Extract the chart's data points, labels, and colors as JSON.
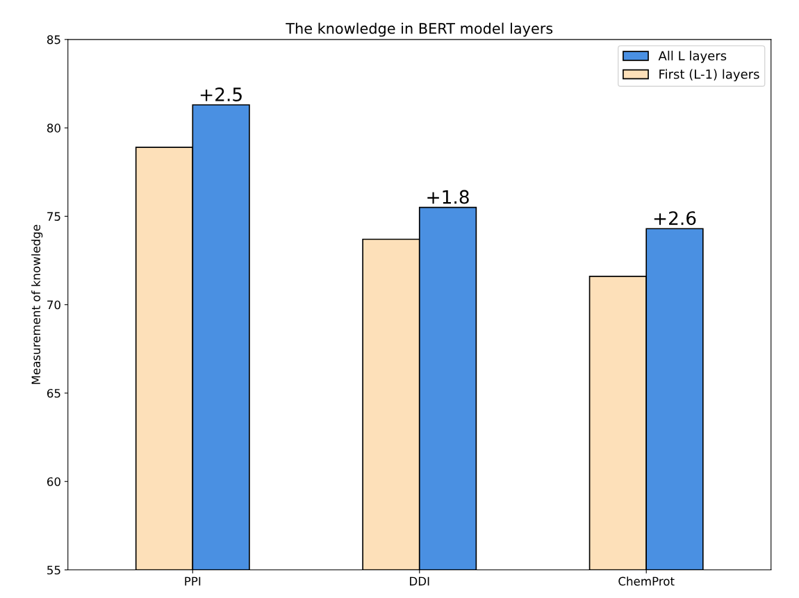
{
  "chart_data": {
    "type": "bar",
    "title": "The knowledge in BERT model layers",
    "ylabel": "Measurement of knowledge",
    "categories": [
      "PPI",
      "DDI",
      "ChemProt"
    ],
    "series": [
      {
        "name": "First (L-1) layers",
        "color": "#fde0b9",
        "values": [
          78.9,
          73.7,
          71.6
        ]
      },
      {
        "name": "All L layers",
        "color": "#4a90e2",
        "values": [
          81.3,
          75.5,
          74.3
        ]
      }
    ],
    "annotations": [
      {
        "text": "+2.5",
        "x": "PPI",
        "y": 81.3
      },
      {
        "text": "+1.8",
        "x": "DDI",
        "y": 75.5
      },
      {
        "text": "+2.6",
        "x": "ChemProt",
        "y": 74.3
      }
    ],
    "ylim": [
      55,
      85
    ],
    "yticks": [
      55,
      60,
      65,
      70,
      75,
      80,
      85
    ],
    "grid": false,
    "legend": "top right"
  }
}
